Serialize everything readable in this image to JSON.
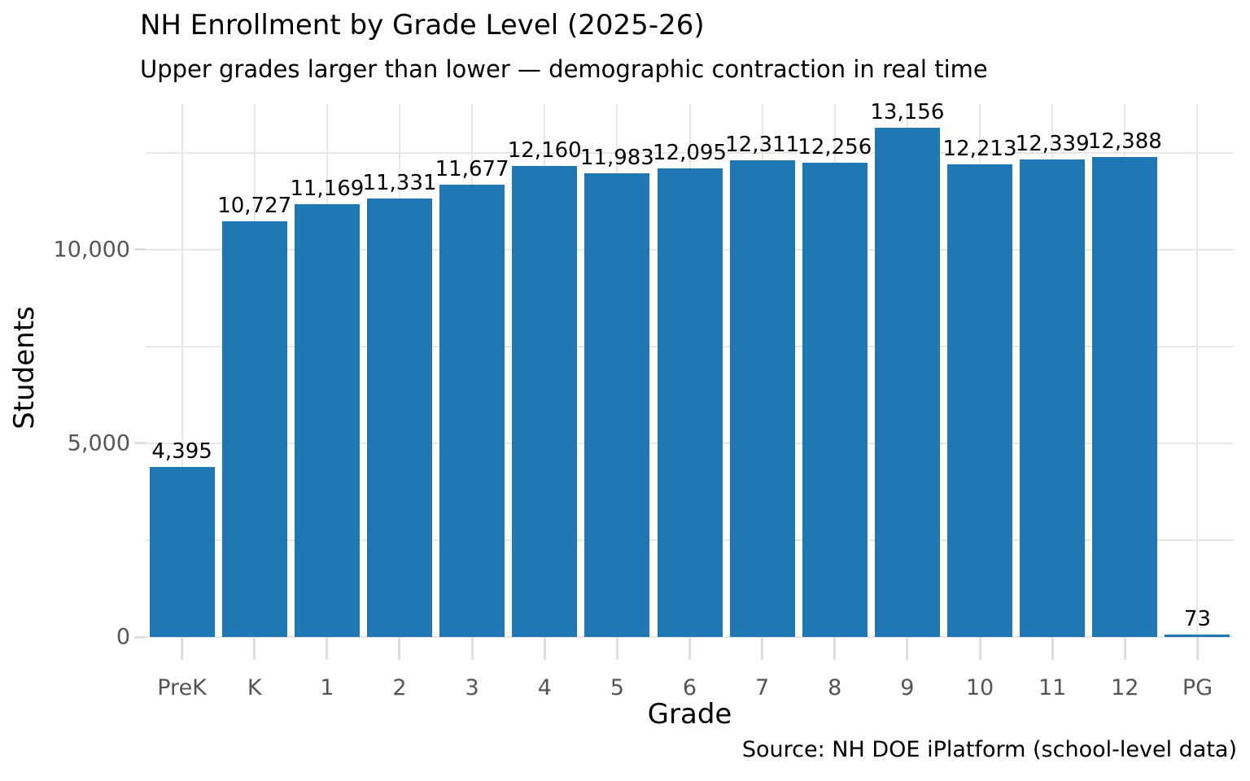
{
  "chart_data": {
    "type": "bar",
    "title": "NH Enrollment by Grade Level (2025-26)",
    "subtitle": "Upper grades larger than lower — demographic contraction in real time",
    "xlabel": "Grade",
    "ylabel": "Students",
    "source": "Source: NH DOE iPlatform (school-level data)",
    "categories": [
      "PreK",
      "K",
      "1",
      "2",
      "3",
      "4",
      "5",
      "6",
      "7",
      "8",
      "9",
      "10",
      "11",
      "12",
      "PG"
    ],
    "values": [
      4395,
      10727,
      11169,
      11331,
      11677,
      12160,
      11983,
      12095,
      12311,
      12256,
      13156,
      12213,
      12339,
      12388,
      73
    ],
    "value_labels": [
      "4,395",
      "10,727",
      "11,169",
      "11,331",
      "11,677",
      "12,160",
      "11,983",
      "12,095",
      "12,311",
      "12,256",
      "13,156",
      "12,213",
      "12,339",
      "12,388",
      "73"
    ],
    "yticks": [
      {
        "value": 0,
        "label": "0"
      },
      {
        "value": 5000,
        "label": "5,000"
      },
      {
        "value": 10000,
        "label": "10,000"
      }
    ],
    "ylim": [
      0,
      13760
    ],
    "grid_step": 2500,
    "grid_max": 12500,
    "grid_on": true,
    "legend": null,
    "colors": {
      "bar": "#1f77b4",
      "grid": "#e7e7e7",
      "tick_mark": "#dedede",
      "tick_label": "#555555",
      "text": "#000000"
    }
  }
}
